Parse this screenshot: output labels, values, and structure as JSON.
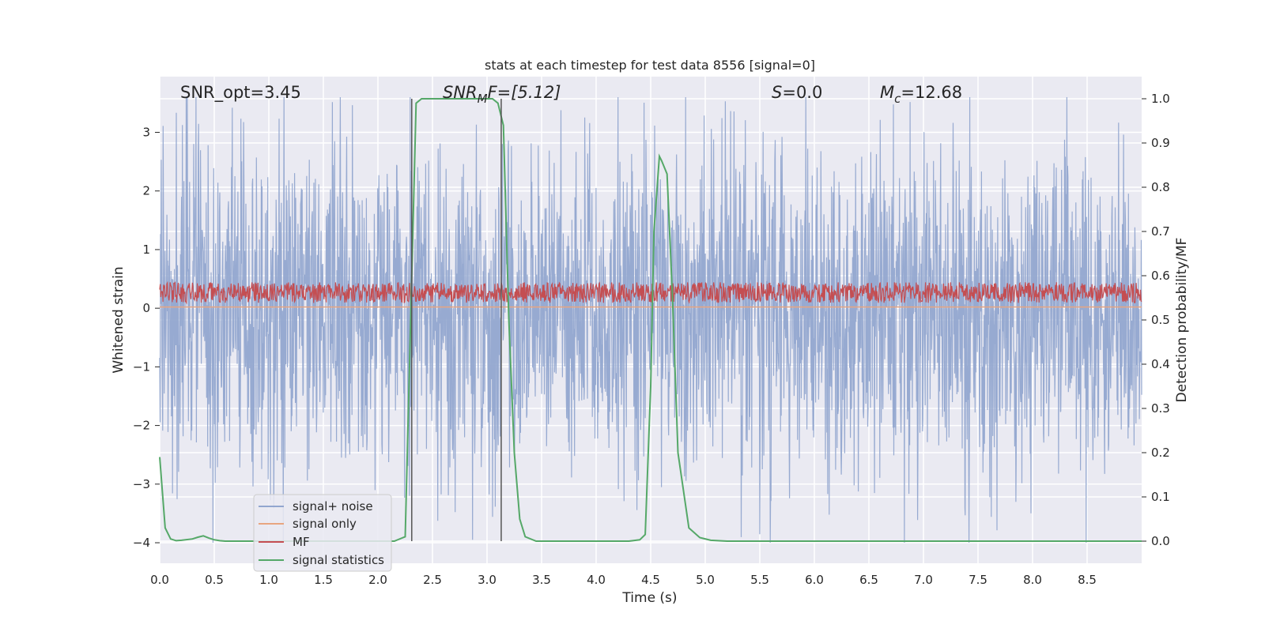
{
  "chart_data": {
    "type": "line",
    "title": "stats at each timestep for test data 8556 [signal=0]",
    "xlabel": "Time (s)",
    "ylabel_left": "Whitened strain",
    "ylabel_right": "Detection probability/MF",
    "xlim": [
      0,
      9.0
    ],
    "ylim_left": [
      -4.35,
      3.95
    ],
    "ylim_right": [
      -0.05,
      1.05
    ],
    "x_ticks": [
      "0.0",
      "0.5",
      "1.0",
      "1.5",
      "2.0",
      "2.5",
      "3.0",
      "3.5",
      "4.0",
      "4.5",
      "5.0",
      "5.5",
      "6.0",
      "6.5",
      "7.0",
      "7.5",
      "8.0",
      "8.5"
    ],
    "y_ticks_left": [
      "3",
      "2",
      "1",
      "0",
      "−1",
      "−2",
      "−3",
      "−4"
    ],
    "y_ticks_right": [
      "1.0",
      "0.9",
      "0.8",
      "0.7",
      "0.6",
      "0.5",
      "0.4",
      "0.3",
      "0.2",
      "0.1",
      "0.0"
    ],
    "grid": true,
    "legend_position": "lower-left",
    "annotations": {
      "snr_opt": "SNR_opt=3.45",
      "snr_mf_base": "SNR",
      "snr_mf_sub": "M",
      "snr_mf_rest": "F=[5.12]",
      "s_var": "S",
      "s_rest": "=0.0",
      "mc_base": "M",
      "mc_sub": "c",
      "mc_rest": "=12.68"
    },
    "vertical_lines_x": [
      2.31,
      3.13
    ],
    "series": [
      {
        "name": "signal+ noise",
        "color": "#92a6cf",
        "description_values": "noise, amplitude about ±3.5, spanning 0 to 9 s"
      },
      {
        "name": "signal only",
        "color": "#e8a580",
        "values_constant": 0.02
      },
      {
        "name": "MF",
        "color": "#c44e52",
        "baseline": 0.25,
        "amplitude": 0.35
      },
      {
        "name": "signal statistics",
        "color": "#55a868",
        "axis": "right",
        "x": [
          0.0,
          0.05,
          0.1,
          0.15,
          0.2,
          0.3,
          0.35,
          0.4,
          0.45,
          0.5,
          0.55,
          0.6,
          0.8,
          1.0,
          1.5,
          2.0,
          2.15,
          2.25,
          2.3,
          2.35,
          2.4,
          2.5,
          2.7,
          2.9,
          3.05,
          3.1,
          3.15,
          3.2,
          3.25,
          3.3,
          3.35,
          3.45,
          3.6,
          4.0,
          4.3,
          4.4,
          4.45,
          4.5,
          4.53,
          4.58,
          4.6,
          4.65,
          4.7,
          4.75,
          4.85,
          4.95,
          5.05,
          5.2,
          6.0,
          7.0,
          8.0,
          9.0
        ],
        "y": [
          0.19,
          0.03,
          0.005,
          0.001,
          0.002,
          0.005,
          0.009,
          0.012,
          0.007,
          0.003,
          0.001,
          0.0,
          0.0,
          0.0,
          0.0,
          0.0,
          0.0,
          0.01,
          0.5,
          0.99,
          1.0,
          1.0,
          1.0,
          1.0,
          1.0,
          0.99,
          0.94,
          0.5,
          0.2,
          0.05,
          0.01,
          0.0,
          0.0,
          0.0,
          0.0,
          0.003,
          0.015,
          0.35,
          0.7,
          0.87,
          0.86,
          0.83,
          0.55,
          0.2,
          0.03,
          0.008,
          0.002,
          0.0,
          0.0,
          0.0,
          0.0,
          0.0
        ]
      }
    ]
  }
}
